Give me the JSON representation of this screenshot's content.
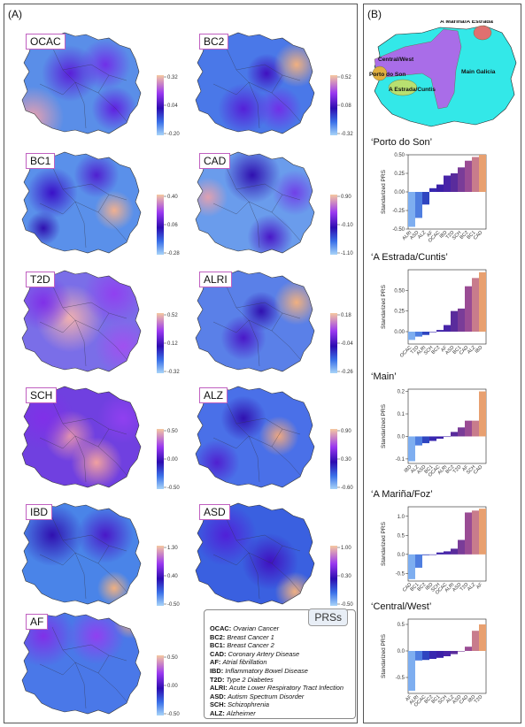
{
  "panelA_label": "(A)",
  "panelB_label": "(B)",
  "maps": [
    {
      "code": "OCAC",
      "max": "0.32",
      "mid": "0.04",
      "min": "-0.20"
    },
    {
      "code": "BC2",
      "max": "0.52",
      "mid": "0.08",
      "min": "-0.32"
    },
    {
      "code": "BC1",
      "max": "0.40",
      "mid": "0.06",
      "min": "-0.28"
    },
    {
      "code": "CAD",
      "max": "0.90",
      "mid": "-0.10",
      "min": "-1.10"
    },
    {
      "code": "T2D",
      "max": "0.52",
      "mid": "0.12",
      "min": "-0.32"
    },
    {
      "code": "ALRI",
      "max": "0.18",
      "mid": "-0.04",
      "min": "-0.26"
    },
    {
      "code": "SCH",
      "max": "0.50",
      "mid": "0.00",
      "min": "-0.50"
    },
    {
      "code": "ALZ",
      "max": "0.90",
      "mid": "0.30",
      "min": "-0.60"
    },
    {
      "code": "IBD",
      "max": "1.30",
      "mid": "0.40",
      "min": "-0.50"
    },
    {
      "code": "ASD",
      "max": "1.00",
      "mid": "0.30",
      "min": "-0.50"
    },
    {
      "code": "AF",
      "max": "0.50",
      "mid": "0.00",
      "min": "-0.50"
    }
  ],
  "prs_legend": {
    "title": "PRSs",
    "entries": [
      {
        "abbr": "OCAC:",
        "full": "Ovarian Cancer"
      },
      {
        "abbr": "BC2:",
        "full": "Breast Cancer 1"
      },
      {
        "abbr": "BC1:",
        "full": "Breast Cancer 2"
      },
      {
        "abbr": "CAD:",
        "full": "Coronary Artery Disease"
      },
      {
        "abbr": "AF:",
        "full": "Atrial fibrillation"
      },
      {
        "abbr": "IBD:",
        "full": "Inflammatory Bowel Disease"
      },
      {
        "abbr": "T2D:",
        "full": "Type 2 Diabetes"
      },
      {
        "abbr": "ALRI:",
        "full": "Acute Lower Respiratory Tract Infection"
      },
      {
        "abbr": "ASD:",
        "full": "Autism Spectrum Disorder"
      },
      {
        "abbr": "SCH:",
        "full": "Schizophrenia"
      },
      {
        "abbr": "ALZ:",
        "full": "Alzheimer"
      }
    ]
  },
  "region_map": {
    "labels": [
      "A Mariña/A Estrada",
      "Central/West",
      "Porto do Son",
      "A Estrada/Cuntis",
      "Main Galicia"
    ],
    "colors": {
      "main": "#33e8e8",
      "central": "#b066e8",
      "porto": "#e0b040",
      "estrada": "#b8e070",
      "marina": "#e07070"
    }
  },
  "chart_data": [
    {
      "type": "bar",
      "title": "‘Porto do Son’",
      "ylabel": "Standarized PRS",
      "ylim": [
        -0.5,
        0.5
      ],
      "yticks": [
        "0.50",
        "0.25",
        "0.00",
        "-0.25",
        "-0.50"
      ],
      "ytick_values": [
        0.5,
        0.25,
        0.0,
        -0.25,
        -0.5
      ],
      "categories": [
        "ALRI",
        "ASD",
        "ALZ",
        "AF",
        "OCAC",
        "IBD",
        "T2D",
        "SCH",
        "BC2",
        "BC1",
        "CAD"
      ],
      "values": [
        -0.47,
        -0.35,
        -0.17,
        0.05,
        0.1,
        0.22,
        0.25,
        0.33,
        0.42,
        0.47,
        0.5
      ]
    },
    {
      "type": "bar",
      "title": "‘A Estrada/Cuntis’",
      "ylabel": "Standarized PRS",
      "ylim": [
        -0.15,
        0.75
      ],
      "yticks": [
        "0.50",
        "0.25",
        "0.00"
      ],
      "ytick_values": [
        0.5,
        0.25,
        0.0
      ],
      "categories": [
        "OCAC",
        "T2D",
        "ALRI",
        "SCH",
        "BC2",
        "AF",
        "ASD",
        "BC1",
        "CAD",
        "ALZ",
        "IBD"
      ],
      "values": [
        -0.1,
        -0.06,
        -0.04,
        0.0,
        0.02,
        0.08,
        0.25,
        0.28,
        0.55,
        0.65,
        0.72
      ]
    },
    {
      "type": "bar",
      "title": "‘Main’",
      "ylabel": "Standarized PRS",
      "ylim": [
        -0.12,
        0.21
      ],
      "yticks": [
        "0.2",
        "0.1",
        "0.0",
        "-0.1"
      ],
      "ytick_values": [
        0.2,
        0.1,
        0.0,
        -0.1
      ],
      "categories": [
        "IBD",
        "ALZ",
        "ASD",
        "BC1",
        "OCAC",
        "ALRI",
        "BC2",
        "T2D",
        "AF",
        "SCH",
        "CAD"
      ],
      "values": [
        -0.11,
        -0.04,
        -0.03,
        -0.02,
        -0.01,
        0.0,
        0.02,
        0.04,
        0.07,
        0.07,
        0.2
      ]
    },
    {
      "type": "bar",
      "title": "‘A Mariña/Foz’",
      "ylabel": "Standarized PRS",
      "ylim": [
        -0.7,
        1.25
      ],
      "yticks": [
        "1.0",
        "0.5",
        "0.0",
        "-0.5"
      ],
      "ytick_values": [
        1.0,
        0.5,
        0.0,
        -0.5
      ],
      "categories": [
        "CAD",
        "BC1",
        "BC2",
        "IBD",
        "SCH",
        "OCAC",
        "ALRI",
        "ASD",
        "T2D",
        "ALZ",
        "AF"
      ],
      "values": [
        -0.65,
        -0.35,
        -0.02,
        0.0,
        0.05,
        0.08,
        0.15,
        0.38,
        1.1,
        1.15,
        1.2
      ]
    },
    {
      "type": "bar",
      "title": "‘Central/West’",
      "ylabel": "Standarized PRS",
      "ylim": [
        -0.8,
        0.6
      ],
      "yticks": [
        "0.5",
        "0.0",
        "-0.5"
      ],
      "ytick_values": [
        0.5,
        0.0,
        -0.5
      ],
      "categories": [
        "AF",
        "ALRI",
        "OCAC",
        "BC2",
        "BC1",
        "SCH",
        "ALZ",
        "ASD",
        "CAD",
        "IBD",
        "T2D"
      ],
      "values": [
        -0.75,
        -0.18,
        -0.17,
        -0.15,
        -0.13,
        -0.1,
        -0.06,
        0.0,
        0.08,
        0.38,
        0.5
      ]
    }
  ]
}
